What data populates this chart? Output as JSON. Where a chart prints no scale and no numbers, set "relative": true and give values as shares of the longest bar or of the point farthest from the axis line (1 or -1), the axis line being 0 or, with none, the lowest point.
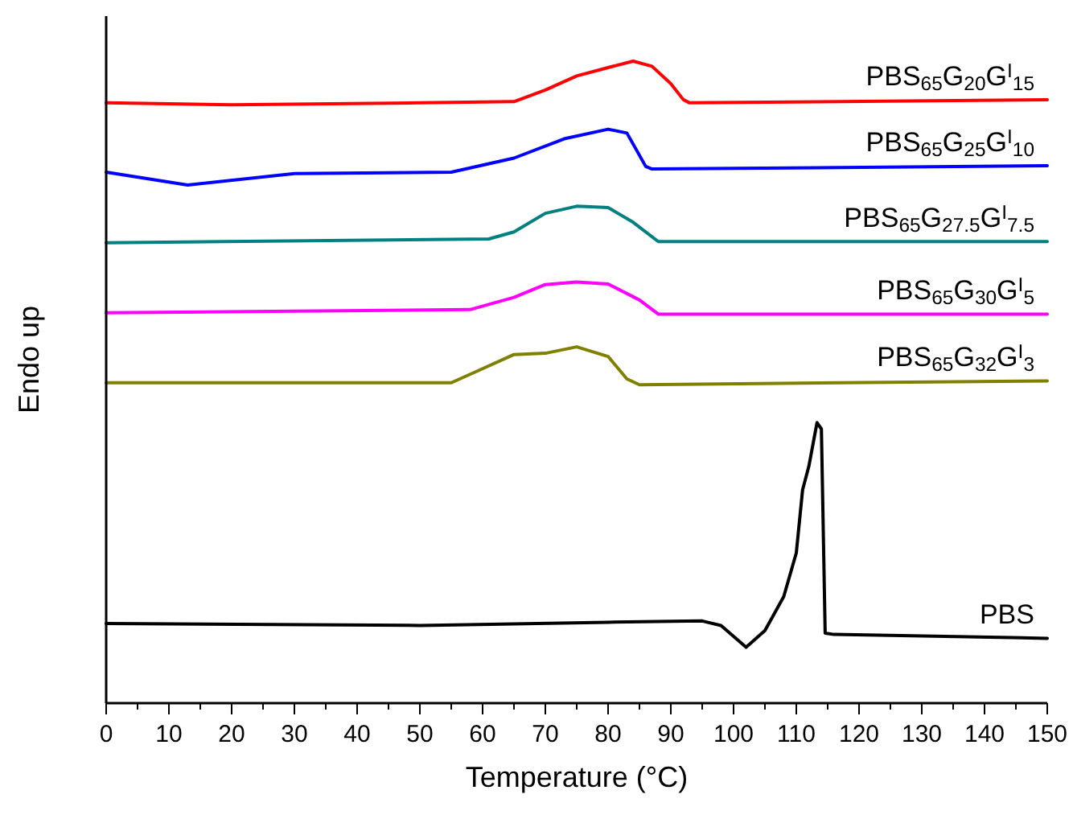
{
  "chart_data": {
    "type": "line",
    "relative": true,
    "xlabel": "Temperature (°C)",
    "ylabel": "Endo up",
    "xlim": [
      0,
      150
    ],
    "xticks": [
      0,
      {
        "value": 5,
        "label": null
      },
      10,
      {
        "value": 15,
        "label": null
      },
      20,
      {
        "value": 25,
        "label": null
      },
      30,
      {
        "value": 35,
        "label": null
      },
      40,
      {
        "value": 45,
        "label": null
      },
      50,
      {
        "value": 55,
        "label": null
      },
      60,
      {
        "value": 65,
        "label": null
      },
      70,
      {
        "value": 75,
        "label": null
      },
      80,
      {
        "value": 85,
        "label": null
      },
      90,
      {
        "value": 95,
        "label": null
      },
      100,
      {
        "value": 105,
        "label": null
      },
      110,
      {
        "value": 115,
        "label": null
      },
      120,
      {
        "value": 125,
        "label": null
      },
      130,
      {
        "value": 135,
        "label": null
      },
      140,
      {
        "value": 145,
        "label": null
      },
      150
    ],
    "grid": false,
    "marker": "none",
    "line_style": "solid",
    "series": [
      {
        "name": "PBS$_{65}$G$_{20}$G$^{I}$$_{15}$",
        "color": "#ff0000",
        "x": [
          0,
          20,
          50,
          65,
          70,
          75,
          80,
          84,
          87,
          90,
          92,
          93,
          150
        ],
        "values": [
          0.935,
          0.932,
          0.935,
          0.937,
          0.955,
          0.977,
          0.99,
          1,
          0.992,
          0.965,
          0.94,
          0.935,
          0.94
        ]
      },
      {
        "name": "PBS$_{65}$G$_{25}$G$^{I}$$_{10}$",
        "color": "#0000ff",
        "x": [
          0,
          13,
          30,
          55,
          65,
          73,
          80,
          83,
          86,
          87,
          150
        ],
        "values": [
          0.827,
          0.807,
          0.825,
          0.827,
          0.849,
          0.879,
          0.894,
          0.888,
          0.836,
          0.832,
          0.837
        ]
      },
      {
        "name": "PBS$_{65}$G$_{27.5}$G$^{I}$$_{7.5}$",
        "color": "#008080",
        "x": [
          0,
          61,
          65,
          70,
          75,
          80,
          84,
          88,
          150
        ],
        "values": [
          0.717,
          0.723,
          0.734,
          0.763,
          0.774,
          0.772,
          0.749,
          0.719,
          0.719
        ]
      },
      {
        "name": "PBS$_{65}$G$_{30}$G$^{I}$$_{5}$",
        "color": "#ff00ff",
        "x": [
          0,
          58,
          65,
          70,
          75,
          80,
          85,
          88,
          150
        ],
        "values": [
          0.608,
          0.613,
          0.632,
          0.652,
          0.656,
          0.653,
          0.628,
          0.606,
          0.606
        ]
      },
      {
        "name": "PBS$_{65}$G$_{32}$G$^{I}$$_{3}$",
        "color": "#808000",
        "x": [
          0,
          55,
          60,
          65,
          70,
          75,
          80,
          83,
          85,
          150
        ],
        "values": [
          0.499,
          0.499,
          0.521,
          0.543,
          0.545,
          0.555,
          0.54,
          0.505,
          0.496,
          0.502
        ]
      },
      {
        "name": "PBS",
        "color": "#000000",
        "x": [
          0,
          50,
          80,
          95,
          98,
          100,
          102,
          105,
          108,
          110,
          111,
          112,
          113.3,
          114,
          114.6,
          116,
          150
        ],
        "values": [
          0.124,
          0.121,
          0.126,
          0.128,
          0.121,
          0.104,
          0.087,
          0.113,
          0.166,
          0.234,
          0.332,
          0.369,
          0.437,
          0.427,
          0.109,
          0.107,
          0.101
        ]
      }
    ]
  }
}
